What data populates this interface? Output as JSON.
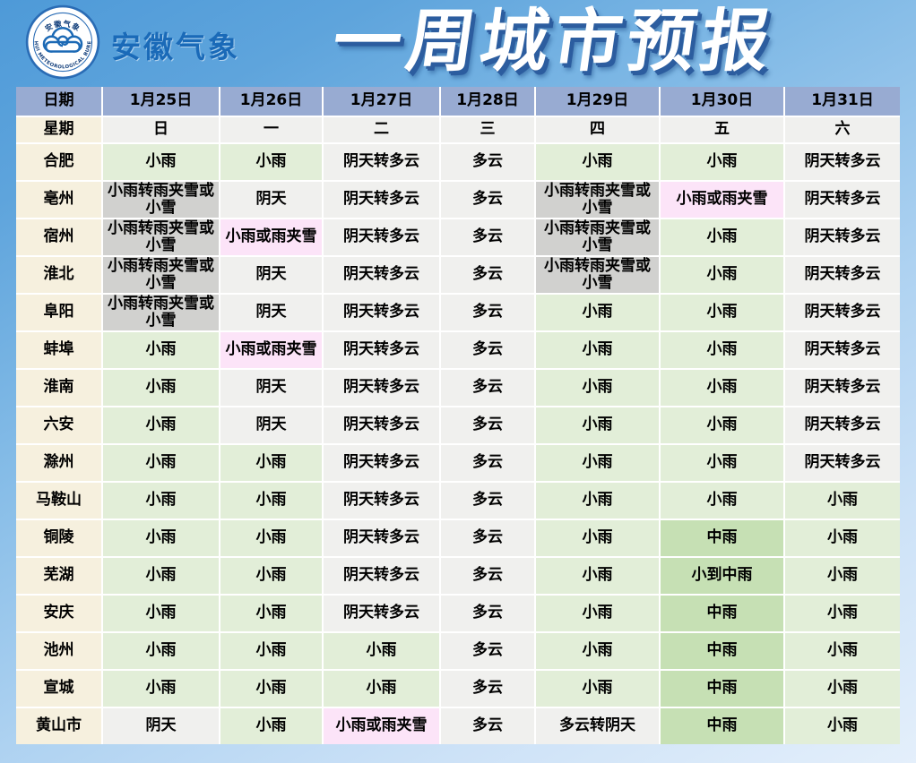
{
  "page": {
    "brand": "安徽气象",
    "title": "一周城市预报",
    "logo": {
      "top_text": "安徽气象",
      "bottom_text": "ANHUI METEOROLOGICAL BUREAU"
    }
  },
  "colors": {
    "header_bg": "#98abd2",
    "city_bg": "#f6f0de",
    "plain": "#f0f0ee",
    "green": "#e2eed8",
    "darkgreen": "#c6e0b4",
    "gray": "#d1d1cf",
    "pink": "#fce4f8",
    "title_blue": "#1a6ab8",
    "shadow_blue": "#2c5d9f",
    "bg_top": "#4e9ad8",
    "bg_bottom": "#e4effb"
  },
  "chart_data": {
    "type": "table",
    "title": "一周城市预报",
    "header_row": {
      "label": "日期",
      "dates": [
        "1月25日",
        "1月26日",
        "1月27日",
        "1月28日",
        "1月29日",
        "1月30日",
        "1月31日"
      ]
    },
    "week_row": {
      "label": "星期",
      "days": [
        "日",
        "一",
        "二",
        "三",
        "四",
        "五",
        "六"
      ]
    },
    "rows": [
      {
        "city": "合肥",
        "cells": [
          [
            "小雨",
            "green"
          ],
          [
            "小雨",
            "green"
          ],
          [
            "阴天转多云",
            "plain"
          ],
          [
            "多云",
            "plain"
          ],
          [
            "小雨",
            "green"
          ],
          [
            "小雨",
            "green"
          ],
          [
            "阴天转多云",
            "plain"
          ]
        ]
      },
      {
        "city": "亳州",
        "cells": [
          [
            "小雨转雨夹雪或小雪",
            "gray"
          ],
          [
            "阴天",
            "plain"
          ],
          [
            "阴天转多云",
            "plain"
          ],
          [
            "多云",
            "plain"
          ],
          [
            "小雨转雨夹雪或小雪",
            "gray"
          ],
          [
            "小雨或雨夹雪",
            "pink"
          ],
          [
            "阴天转多云",
            "plain"
          ]
        ]
      },
      {
        "city": "宿州",
        "cells": [
          [
            "小雨转雨夹雪或小雪",
            "gray"
          ],
          [
            "小雨或雨夹雪",
            "pink"
          ],
          [
            "阴天转多云",
            "plain"
          ],
          [
            "多云",
            "plain"
          ],
          [
            "小雨转雨夹雪或小雪",
            "gray"
          ],
          [
            "小雨",
            "green"
          ],
          [
            "阴天转多云",
            "plain"
          ]
        ]
      },
      {
        "city": "淮北",
        "cells": [
          [
            "小雨转雨夹雪或小雪",
            "gray"
          ],
          [
            "阴天",
            "plain"
          ],
          [
            "阴天转多云",
            "plain"
          ],
          [
            "多云",
            "plain"
          ],
          [
            "小雨转雨夹雪或小雪",
            "gray"
          ],
          [
            "小雨",
            "green"
          ],
          [
            "阴天转多云",
            "plain"
          ]
        ]
      },
      {
        "city": "阜阳",
        "cells": [
          [
            "小雨转雨夹雪或小雪",
            "gray"
          ],
          [
            "阴天",
            "plain"
          ],
          [
            "阴天转多云",
            "plain"
          ],
          [
            "多云",
            "plain"
          ],
          [
            "小雨",
            "green"
          ],
          [
            "小雨",
            "green"
          ],
          [
            "阴天转多云",
            "plain"
          ]
        ]
      },
      {
        "city": "蚌埠",
        "cells": [
          [
            "小雨",
            "green"
          ],
          [
            "小雨或雨夹雪",
            "pink"
          ],
          [
            "阴天转多云",
            "plain"
          ],
          [
            "多云",
            "plain"
          ],
          [
            "小雨",
            "green"
          ],
          [
            "小雨",
            "green"
          ],
          [
            "阴天转多云",
            "plain"
          ]
        ]
      },
      {
        "city": "淮南",
        "cells": [
          [
            "小雨",
            "green"
          ],
          [
            "阴天",
            "plain"
          ],
          [
            "阴天转多云",
            "plain"
          ],
          [
            "多云",
            "plain"
          ],
          [
            "小雨",
            "green"
          ],
          [
            "小雨",
            "green"
          ],
          [
            "阴天转多云",
            "plain"
          ]
        ]
      },
      {
        "city": "六安",
        "cells": [
          [
            "小雨",
            "green"
          ],
          [
            "阴天",
            "plain"
          ],
          [
            "阴天转多云",
            "plain"
          ],
          [
            "多云",
            "plain"
          ],
          [
            "小雨",
            "green"
          ],
          [
            "小雨",
            "green"
          ],
          [
            "阴天转多云",
            "plain"
          ]
        ]
      },
      {
        "city": "滁州",
        "cells": [
          [
            "小雨",
            "green"
          ],
          [
            "小雨",
            "green"
          ],
          [
            "阴天转多云",
            "plain"
          ],
          [
            "多云",
            "plain"
          ],
          [
            "小雨",
            "green"
          ],
          [
            "小雨",
            "green"
          ],
          [
            "阴天转多云",
            "plain"
          ]
        ]
      },
      {
        "city": "马鞍山",
        "cells": [
          [
            "小雨",
            "green"
          ],
          [
            "小雨",
            "green"
          ],
          [
            "阴天转多云",
            "plain"
          ],
          [
            "多云",
            "plain"
          ],
          [
            "小雨",
            "green"
          ],
          [
            "小雨",
            "green"
          ],
          [
            "小雨",
            "green"
          ]
        ]
      },
      {
        "city": "铜陵",
        "cells": [
          [
            "小雨",
            "green"
          ],
          [
            "小雨",
            "green"
          ],
          [
            "阴天转多云",
            "plain"
          ],
          [
            "多云",
            "plain"
          ],
          [
            "小雨",
            "green"
          ],
          [
            "中雨",
            "darkgreen"
          ],
          [
            "小雨",
            "green"
          ]
        ]
      },
      {
        "city": "芜湖",
        "cells": [
          [
            "小雨",
            "green"
          ],
          [
            "小雨",
            "green"
          ],
          [
            "阴天转多云",
            "plain"
          ],
          [
            "多云",
            "plain"
          ],
          [
            "小雨",
            "green"
          ],
          [
            "小到中雨",
            "darkgreen"
          ],
          [
            "小雨",
            "green"
          ]
        ]
      },
      {
        "city": "安庆",
        "cells": [
          [
            "小雨",
            "green"
          ],
          [
            "小雨",
            "green"
          ],
          [
            "阴天转多云",
            "plain"
          ],
          [
            "多云",
            "plain"
          ],
          [
            "小雨",
            "green"
          ],
          [
            "中雨",
            "darkgreen"
          ],
          [
            "小雨",
            "green"
          ]
        ]
      },
      {
        "city": "池州",
        "cells": [
          [
            "小雨",
            "green"
          ],
          [
            "小雨",
            "green"
          ],
          [
            "小雨",
            "green"
          ],
          [
            "多云",
            "plain"
          ],
          [
            "小雨",
            "green"
          ],
          [
            "中雨",
            "darkgreen"
          ],
          [
            "小雨",
            "green"
          ]
        ]
      },
      {
        "city": "宣城",
        "cells": [
          [
            "小雨",
            "green"
          ],
          [
            "小雨",
            "green"
          ],
          [
            "小雨",
            "green"
          ],
          [
            "多云",
            "plain"
          ],
          [
            "小雨",
            "green"
          ],
          [
            "中雨",
            "darkgreen"
          ],
          [
            "小雨",
            "green"
          ]
        ]
      },
      {
        "city": "黄山市",
        "cells": [
          [
            "阴天",
            "plain"
          ],
          [
            "小雨",
            "green"
          ],
          [
            "小雨或雨夹雪",
            "pink"
          ],
          [
            "多云",
            "plain"
          ],
          [
            "多云转阴天",
            "plain"
          ],
          [
            "中雨",
            "darkgreen"
          ],
          [
            "小雨",
            "green"
          ]
        ]
      }
    ]
  }
}
